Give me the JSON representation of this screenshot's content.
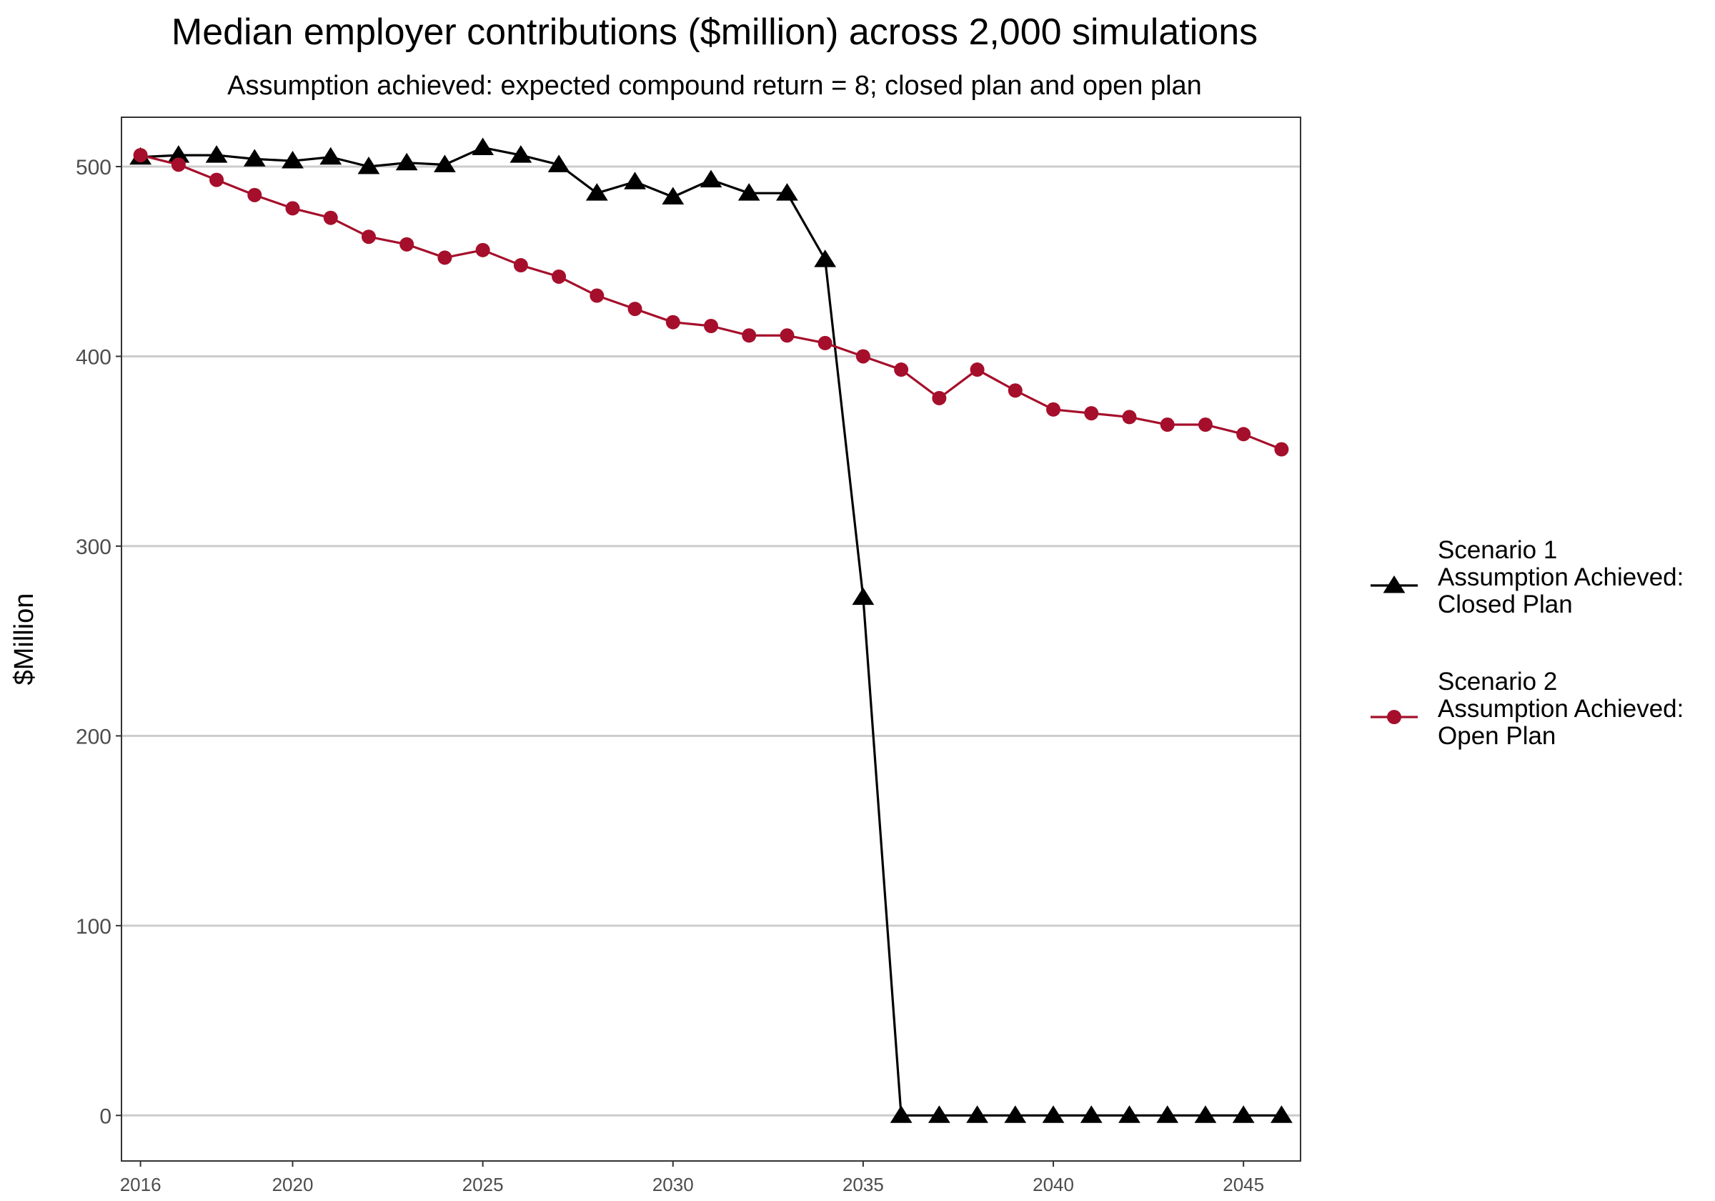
{
  "chart_data": {
    "type": "line",
    "title": "Median employer contributions ($million) across 2,000 simulations",
    "subtitle": "Assumption achieved: expected compound return = 8; closed plan and open plan",
    "xlabel": "",
    "ylabel": "$Million",
    "xlim": [
      2015.5,
      2046.5
    ],
    "ylim": [
      -24,
      526
    ],
    "x_ticks": [
      2016,
      2020,
      2025,
      2030,
      2035,
      2040,
      2045
    ],
    "y_ticks": [
      0,
      100,
      200,
      300,
      400,
      500
    ],
    "grid": "horizontal major",
    "legend_position": "right",
    "x": [
      2016,
      2017,
      2018,
      2019,
      2020,
      2021,
      2022,
      2023,
      2024,
      2025,
      2026,
      2027,
      2028,
      2029,
      2030,
      2031,
      2032,
      2033,
      2034,
      2035,
      2036,
      2037,
      2038,
      2039,
      2040,
      2041,
      2042,
      2043,
      2044,
      2045,
      2046
    ],
    "series": [
      {
        "name": "Scenario 1\nAssumption Achieved:\nClosed Plan",
        "name_lines": [
          "Scenario 1",
          "Assumption Achieved:",
          "Closed Plan"
        ],
        "color": "#000000",
        "marker": "triangle",
        "values": [
          505,
          506,
          506,
          504,
          503,
          505,
          500,
          502,
          501,
          510,
          506,
          501,
          486,
          492,
          484,
          493,
          486,
          486,
          451,
          273,
          0,
          0,
          0,
          0,
          0,
          0,
          0,
          0,
          0,
          0,
          0
        ]
      },
      {
        "name": "Scenario 2\nAssumption Achieved:\nOpen Plan",
        "name_lines": [
          "Scenario 2",
          "Assumption Achieved:",
          "Open Plan"
        ],
        "color": "#a50f2b",
        "marker": "circle",
        "values": [
          506,
          501,
          493,
          485,
          478,
          473,
          463,
          459,
          452,
          456,
          448,
          442,
          432,
          425,
          418,
          416,
          411,
          411,
          407,
          400,
          393,
          378,
          393,
          382,
          372,
          370,
          368,
          364,
          364,
          359,
          351
        ]
      }
    ]
  }
}
